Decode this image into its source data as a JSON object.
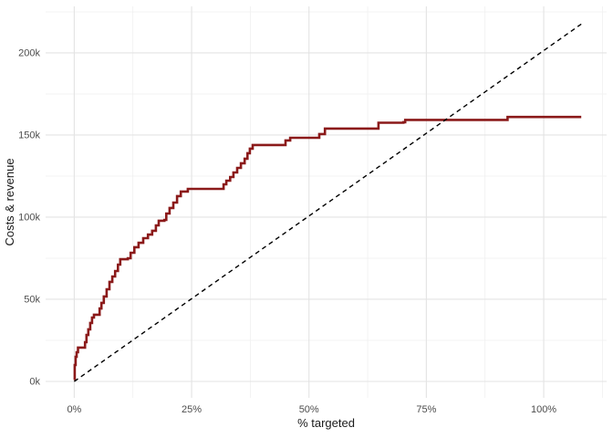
{
  "figure": {
    "background": "#ffffff"
  },
  "chart_data": {
    "type": "line",
    "title": "",
    "xlabel": "% targeted",
    "ylabel": "Costs & revenue",
    "legend": false,
    "grid": {
      "major_color": "#e3e3e3",
      "minor_color": "#efefef"
    },
    "x_axis": {
      "range": [
        -6.1,
        113.4
      ],
      "major_ticks": [
        0,
        25,
        50,
        75,
        100
      ],
      "major_labels": [
        "0%",
        "25%",
        "50%",
        "75%",
        "100%"
      ],
      "minor_ticks": [
        12.5,
        37.5,
        62.5,
        87.5,
        112.5
      ],
      "unit": "percent"
    },
    "y_axis": {
      "range": [
        -10,
        228.3
      ],
      "major_ticks": [
        0,
        50,
        100,
        150,
        200
      ],
      "major_labels": [
        "0k",
        "50k",
        "100k",
        "150k",
        "200k"
      ],
      "minor_ticks": [
        25,
        75,
        125,
        175,
        225
      ],
      "unit": "thousands"
    },
    "series": [
      {
        "name": "costs-revenue-step-curve",
        "style": "step",
        "color": "#8B1A1A",
        "stroke_width": 2.6,
        "x": [
          0,
          0.1,
          0.3,
          0.5,
          0.8,
          2.1,
          2.3,
          2.6,
          3.0,
          3.4,
          3.8,
          4.2,
          5.0,
          5.4,
          5.8,
          6.3,
          6.9,
          7.5,
          8.1,
          8.7,
          9.3,
          9.8,
          11.4,
          12.0,
          12.8,
          13.7,
          14.7,
          15.7,
          16.6,
          17.4,
          18.0,
          19.2,
          19.6,
          20.3,
          21.1,
          21.9,
          22.7,
          24.2,
          31.2,
          31.8,
          32.4,
          33.2,
          33.9,
          34.7,
          35.5,
          36.3,
          36.9,
          37.4,
          38.0,
          44.6,
          45.0,
          46.0,
          51.8,
          52.2,
          53.4,
          64.3,
          64.8,
          70.1,
          70.5,
          91.7,
          92.3,
          108.0
        ],
        "y": [
          1,
          10,
          15,
          17.8,
          20.6,
          20.6,
          23.9,
          28.3,
          31.7,
          35.6,
          38.9,
          40.6,
          40.6,
          44.4,
          47.8,
          51.7,
          56.1,
          60.6,
          63.9,
          67.2,
          71.1,
          74.4,
          75.0,
          78.3,
          81.7,
          84.4,
          87.2,
          89.4,
          91.7,
          95.0,
          97.8,
          98.3,
          102.2,
          105.6,
          108.9,
          112.8,
          115.6,
          117.2,
          117.2,
          120.0,
          122.2,
          124.4,
          127.2,
          130.0,
          132.8,
          135.6,
          138.9,
          141.7,
          143.9,
          143.9,
          146.7,
          148.3,
          148.3,
          150.6,
          153.9,
          153.9,
          157.5,
          157.8,
          159.2,
          159.2,
          161.0,
          161.0
        ]
      },
      {
        "name": "baseline-diagonal",
        "style": "dashed",
        "color": "#000000",
        "stroke_width": 1.4,
        "dash": "5,4",
        "x": [
          0,
          108
        ],
        "y": [
          0,
          217.5
        ]
      }
    ]
  }
}
